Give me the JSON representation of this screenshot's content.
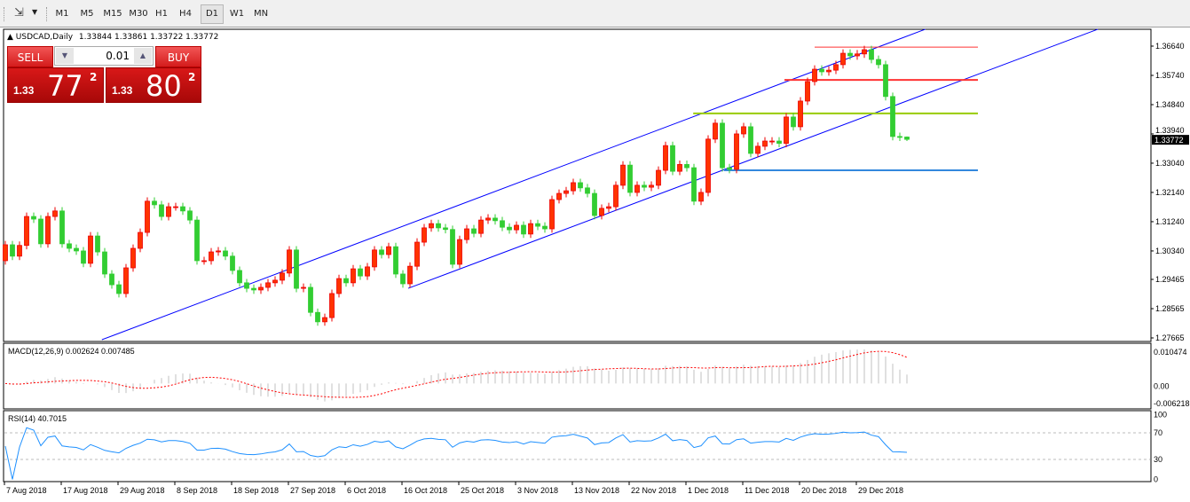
{
  "toolbar": {
    "tools_icon": "arrows-cursor-icon",
    "timeframes": [
      "M1",
      "M5",
      "M15",
      "M30",
      "H1",
      "H4",
      "D1",
      "W1",
      "MN"
    ],
    "selected_timeframe": "D1"
  },
  "header": {
    "symbol": "USDCAD,Daily",
    "ohlc": "1.33844 1.33861 1.33722 1.33772"
  },
  "trade_panel": {
    "sell_label": "SELL",
    "buy_label": "BUY",
    "lot": "0.01",
    "sell_prefix": "1.33",
    "sell_big": "77",
    "sell_sup": "2",
    "buy_prefix": "1.33",
    "buy_big": "80",
    "buy_sup": "2"
  },
  "macd": {
    "label": "MACD(12,26,9) 0.002624 0.007485",
    "axis": [
      "0.010474",
      "0.00",
      "-0.006218"
    ],
    "range": [
      -0.006218,
      0.010474
    ]
  },
  "rsi": {
    "label": "RSI(14) 40.7015",
    "axis": [
      "100",
      "70",
      "30",
      "0"
    ],
    "levels": [
      70,
      30
    ]
  },
  "chart_data": {
    "type": "candlestick",
    "symbol": "USDCAD",
    "timeframe": "Daily",
    "ylim": [
      1.27665,
      1.3664
    ],
    "y_ticks": [
      "1.36640",
      "1.35740",
      "1.34840",
      "1.33940",
      "1.33040",
      "1.32140",
      "1.31240",
      "1.30340",
      "1.29465",
      "1.28565",
      "1.27665"
    ],
    "x_tick_labels": [
      "7 Aug 2018",
      "17 Aug 2018",
      "29 Aug 2018",
      "8 Sep 2018",
      "18 Sep 2018",
      "27 Sep 2018",
      "6 Oct 2018",
      "16 Oct 2018",
      "25 Oct 2018",
      "3 Nov 2018",
      "13 Nov 2018",
      "22 Nov 2018",
      "1 Dec 2018",
      "11 Dec 2018",
      "20 Dec 2018",
      "29 Dec 2018"
    ],
    "bars_per_x_tick": 8,
    "first_open": 1.3004,
    "closes": [
      1.3053,
      1.3018,
      1.3051,
      1.314,
      1.3132,
      1.3056,
      1.314,
      1.3157,
      1.3056,
      1.3042,
      1.3034,
      1.2996,
      1.308,
      1.3031,
      1.2963,
      1.293,
      1.2903,
      1.2982,
      1.3042,
      1.3091,
      1.3187,
      1.3176,
      1.314,
      1.317,
      1.317,
      1.3157,
      1.3129,
      1.3004,
      1.3004,
      1.3031,
      1.3034,
      1.3018,
      1.2974,
      1.2936,
      1.2919,
      1.2914,
      1.2922,
      1.2936,
      1.2944,
      1.2966,
      1.3037,
      1.2919,
      1.2922,
      1.2845,
      1.2816,
      1.2829,
      1.2903,
      1.2949,
      1.2936,
      1.2979,
      1.2957,
      1.2985,
      1.3037,
      1.3023,
      1.3047,
      1.2963,
      1.2933,
      1.2987,
      1.3061,
      1.3105,
      1.3118,
      1.3105,
      1.31,
      1.2993,
      1.3069,
      1.3102,
      1.3088,
      1.3129,
      1.3135,
      1.3127,
      1.3107,
      1.3099,
      1.3113,
      1.3086,
      1.3118,
      1.311,
      1.3102,
      1.3192,
      1.3211,
      1.3219,
      1.3244,
      1.3228,
      1.3211,
      1.3143,
      1.3165,
      1.317,
      1.3236,
      1.3298,
      1.3214,
      1.3236,
      1.323,
      1.3236,
      1.3282,
      1.3358,
      1.3279,
      1.33,
      1.329,
      1.3187,
      1.3214,
      1.3378,
      1.3427,
      1.329,
      1.3285,
      1.3394,
      1.3416,
      1.3334,
      1.3356,
      1.3372,
      1.3372,
      1.3365,
      1.3446,
      1.3416,
      1.3495,
      1.3555,
      1.3593,
      1.3585,
      1.359,
      1.3607,
      1.3642,
      1.3634,
      1.364,
      1.3653,
      1.3623,
      1.3607,
      1.3509,
      1.3386,
      1.3384,
      1.33772
    ],
    "last_bar": {
      "open": 1.33844,
      "high": 1.33861,
      "low": 1.33722,
      "close": 1.33772
    },
    "current_price": "1.33772",
    "objects": [
      {
        "kind": "trendline",
        "color": "#0000ff",
        "from": {
          "bar": 13.6,
          "price": 1.2761
        },
        "to": {
          "bar": 129.6,
          "price": 1.3716
        }
      },
      {
        "kind": "trendline",
        "color": "#0000ff",
        "from": {
          "bar": 56.75,
          "price": 1.2919
        },
        "to": {
          "bar": 153.9,
          "price": 1.3716
        }
      },
      {
        "kind": "hline",
        "color": "#ff3333",
        "price": 1.3661,
        "from_bar": 114
      },
      {
        "kind": "hline",
        "color": "#ff3333",
        "price": 1.356,
        "from_bar": 109.75,
        "thick": true
      },
      {
        "kind": "hline",
        "color": "#99cc00",
        "price": 1.3457,
        "from_bar": 96.9,
        "thick": true
      },
      {
        "kind": "hline",
        "color": "#3388dd",
        "price": 1.3282,
        "from_bar": 101.25,
        "thick": true
      }
    ],
    "colors": {
      "bull": "#ff3300",
      "bear": "#32cd32",
      "macd_hist": "#c0c0c0",
      "macd_signal": "#ff0000",
      "rsi": "#1e90ff"
    }
  }
}
